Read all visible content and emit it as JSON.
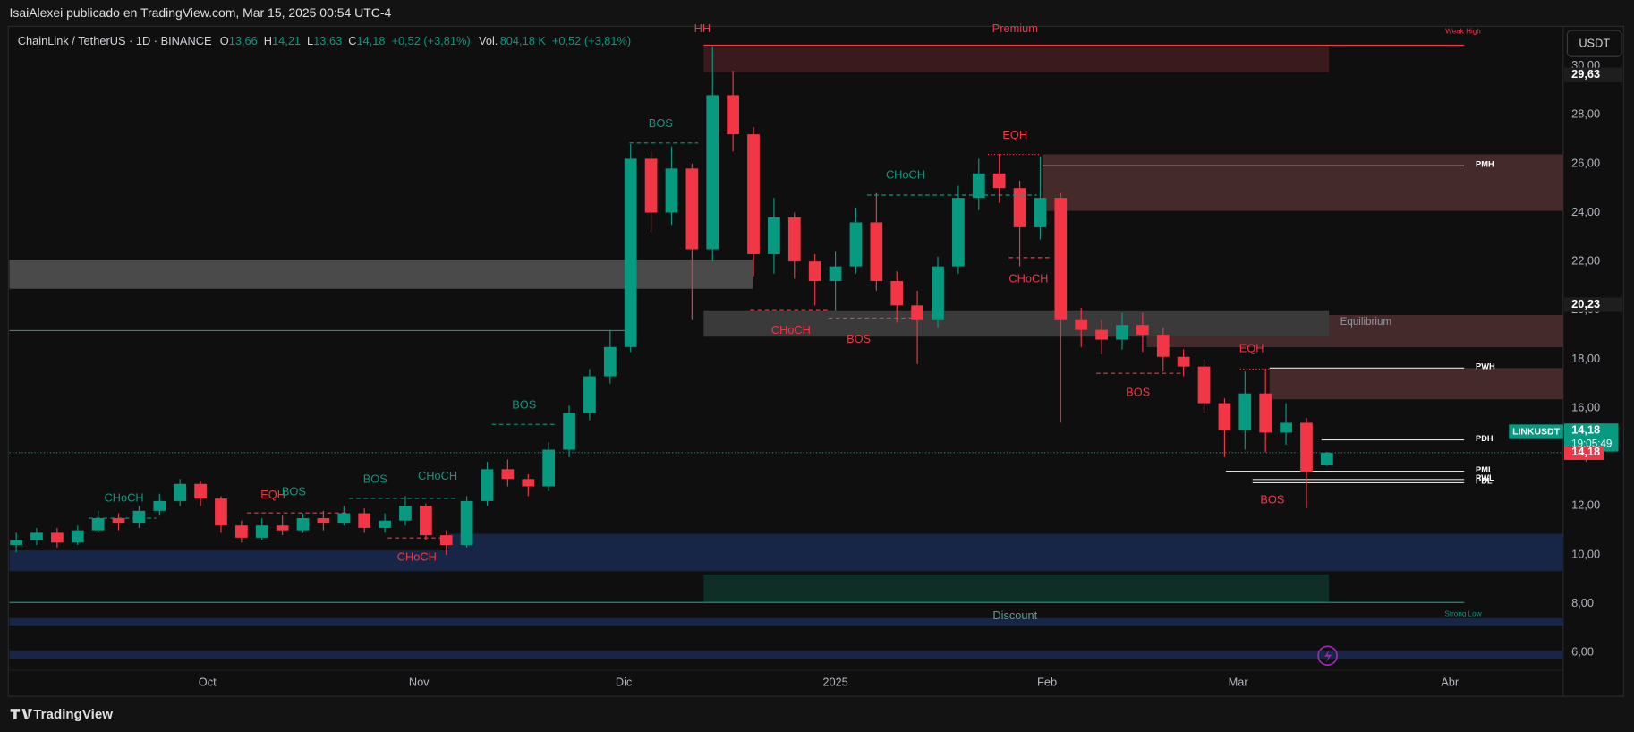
{
  "header": "IsaiAlexei publicado en TradingView.com, Mar 15, 2025 00:54 UTC-4",
  "brand": "TradingView",
  "currency": "USDT",
  "chart_data": {
    "type": "candlestick",
    "legend": {
      "symbol": "ChainLink / TetherUS · 1D · BINANCE",
      "fields": [
        {
          "key": "O",
          "value": "13,66"
        },
        {
          "key": "H",
          "value": "14,21"
        },
        {
          "key": "L",
          "value": "13,63"
        },
        {
          "key": "C",
          "value": "14,18"
        }
      ],
      "change": "+0,52 (+3,81%)",
      "vol_key": "Vol.",
      "volume": "804,18 K",
      "vol_change": "+0,52 (+3,81%)"
    },
    "up_color": "#089981",
    "down_color": "#f23645",
    "x": [
      1,
      4,
      7,
      10,
      13,
      16,
      19,
      22,
      25,
      28,
      31,
      34,
      37,
      40,
      43,
      46,
      49,
      52,
      55,
      58,
      61,
      64,
      67,
      70,
      73,
      76,
      79,
      82,
      85,
      88,
      91,
      94,
      97,
      100,
      103,
      106,
      109,
      112,
      115,
      118,
      121,
      124,
      127,
      130,
      133,
      136,
      139,
      142,
      145,
      148,
      151,
      154,
      157,
      160,
      163,
      166,
      169,
      172,
      175,
      178,
      181,
      184,
      187,
      190,
      193
    ],
    "open": [
      10.4,
      10.6,
      10.9,
      10.5,
      11.0,
      11.5,
      11.3,
      11.8,
      12.2,
      12.9,
      12.3,
      11.2,
      10.7,
      11.2,
      11.0,
      11.5,
      11.3,
      11.7,
      11.1,
      11.4,
      12.0,
      10.8,
      10.4,
      12.2,
      13.5,
      13.1,
      12.8,
      14.3,
      15.8,
      17.3,
      18.5,
      26.2,
      24.0,
      25.8,
      22.5,
      28.8,
      27.2,
      22.3,
      23.8,
      22.0,
      21.2,
      21.8,
      23.6,
      21.2,
      20.2,
      19.6,
      21.8,
      24.6,
      25.6,
      25.0,
      23.4,
      24.6,
      19.6,
      19.2,
      18.8,
      19.4,
      19.0,
      18.1,
      17.7,
      16.2,
      15.1,
      16.6,
      15.0,
      15.4,
      13.66
    ],
    "high": [
      10.9,
      11.1,
      11.1,
      11.2,
      11.8,
      11.7,
      12.0,
      12.5,
      13.1,
      13.0,
      12.4,
      11.4,
      11.5,
      11.6,
      11.7,
      11.8,
      12.0,
      11.9,
      11.7,
      12.4,
      12.1,
      11.0,
      12.4,
      13.8,
      13.9,
      13.3,
      14.6,
      16.1,
      17.6,
      19.2,
      26.8,
      26.5,
      26.7,
      26.0,
      30.8,
      29.8,
      27.5,
      24.6,
      24.0,
      22.3,
      22.4,
      24.2,
      24.8,
      21.6,
      20.8,
      22.2,
      25.1,
      26.2,
      26.4,
      25.3,
      26.3,
      24.8,
      20.1,
      19.6,
      19.9,
      19.9,
      19.3,
      18.4,
      18.0,
      16.4,
      17.5,
      17.6,
      16.2,
      15.6,
      14.21
    ],
    "low": [
      10.1,
      10.4,
      10.3,
      10.4,
      10.9,
      11.0,
      11.1,
      11.6,
      12.0,
      12.0,
      10.9,
      10.5,
      10.6,
      10.8,
      10.9,
      11.0,
      11.2,
      10.9,
      10.9,
      11.2,
      10.6,
      10.0,
      10.3,
      12.0,
      12.8,
      12.4,
      12.6,
      14.0,
      15.5,
      17.0,
      18.3,
      23.2,
      23.5,
      19.6,
      22.0,
      26.5,
      21.4,
      21.5,
      21.3,
      20.2,
      20.0,
      21.5,
      20.8,
      19.5,
      17.8,
      19.3,
      21.5,
      24.1,
      24.4,
      21.8,
      22.9,
      15.4,
      18.5,
      18.2,
      18.4,
      18.3,
      17.5,
      17.3,
      15.8,
      14.0,
      14.3,
      14.2,
      14.5,
      11.9,
      13.63
    ],
    "close": [
      10.6,
      10.9,
      10.5,
      11.0,
      11.5,
      11.3,
      11.8,
      12.2,
      12.9,
      12.3,
      11.2,
      10.7,
      11.2,
      11.0,
      11.5,
      11.3,
      11.7,
      11.1,
      11.4,
      12.0,
      10.8,
      10.4,
      12.2,
      13.5,
      13.1,
      12.8,
      14.3,
      15.8,
      17.3,
      18.5,
      26.2,
      24.0,
      25.8,
      22.5,
      28.8,
      27.2,
      22.3,
      23.8,
      22.0,
      21.2,
      21.8,
      23.6,
      21.2,
      20.2,
      19.6,
      21.8,
      24.6,
      25.6,
      25.0,
      23.4,
      24.6,
      19.6,
      19.2,
      18.8,
      19.4,
      19.0,
      18.1,
      17.7,
      16.2,
      15.1,
      16.6,
      15.0,
      15.4,
      13.4,
      14.18
    ],
    "xlim": [
      0,
      227.6
    ],
    "xticks": [
      {
        "value": 29,
        "label": "Oct"
      },
      {
        "value": 60,
        "label": "Nov"
      },
      {
        "value": 90,
        "label": "Dic"
      },
      {
        "value": 121,
        "label": "2025"
      },
      {
        "value": 152,
        "label": "Feb"
      },
      {
        "value": 180,
        "label": "Mar"
      },
      {
        "value": 211,
        "label": "Abr"
      }
    ],
    "ylim": [
      4.21,
      31.62
    ],
    "yticks": [
      {
        "value": 6,
        "label": "6,00"
      },
      {
        "value": 8,
        "label": "8,00"
      },
      {
        "value": 10,
        "label": "10,00"
      },
      {
        "value": 12,
        "label": "12,00"
      },
      {
        "value": 14,
        "label": "14,00"
      },
      {
        "value": 16,
        "label": "16,00"
      },
      {
        "value": 18,
        "label": "18,00"
      },
      {
        "value": 20,
        "label": "20,00"
      },
      {
        "value": 22,
        "label": "22,00"
      },
      {
        "value": 24,
        "label": "24,00"
      },
      {
        "value": 26,
        "label": "26,00"
      },
      {
        "value": 28,
        "label": "28,00"
      },
      {
        "value": 30,
        "label": "30,00"
      }
    ],
    "grid": false,
    "zones": [
      {
        "x": [
          101.7,
          193.3
        ],
        "y": [
          29.74,
          30.85
        ],
        "color": "#3b1a1e"
      },
      {
        "x": [
          151.3,
          227.6
        ],
        "y": [
          24.07,
          26.38
        ],
        "color": "#452a2b"
      },
      {
        "x": [
          0,
          108.9
        ],
        "y": [
          20.88,
          22.07
        ],
        "color": "#4a4a4a"
      },
      {
        "x": [
          166.6,
          227.6
        ],
        "y": [
          18.49,
          19.81
        ],
        "color": "#452a2b"
      },
      {
        "x": [
          101.7,
          193.3
        ],
        "y": [
          18.92,
          20.0
        ],
        "color": "#3a3a3a"
      },
      {
        "x": [
          184.6,
          227.6
        ],
        "y": [
          16.36,
          17.64
        ],
        "color": "#452a2b"
      },
      {
        "x": [
          64.3,
          227.6
        ],
        "y": [
          10.09,
          10.86
        ],
        "color": "#172646"
      },
      {
        "x": [
          0,
          227.6
        ],
        "y": [
          9.33,
          10.18
        ],
        "color": "#172646"
      },
      {
        "x": [
          101.7,
          193.3
        ],
        "y": [
          8.05,
          9.2
        ],
        "color": "#0e2e26"
      },
      {
        "x": [
          0,
          227.6
        ],
        "y": [
          7.11,
          7.41
        ],
        "color": "#172646"
      },
      {
        "x": [
          0,
          227.6
        ],
        "y": [
          5.75,
          6.09
        ],
        "color": "#172646"
      }
    ],
    "lines": [
      {
        "value": 30.85,
        "x": [
          101.7,
          213.1
        ],
        "color": "#f23645"
      },
      {
        "value": 19.17,
        "x": [
          0,
          90.2
        ],
        "color": "#089981"
      },
      {
        "value": 8.05,
        "x": [
          0,
          213.1
        ],
        "color": "#089981"
      }
    ],
    "levels": [
      {
        "label": "PMH",
        "value": 25.91,
        "x": [
          151.3,
          213.1
        ]
      },
      {
        "label": "PWH",
        "value": 17.64,
        "x": [
          184.6,
          213.1
        ]
      },
      {
        "label": "PDH",
        "value": 14.7,
        "x": [
          192.2,
          213.1
        ]
      },
      {
        "label": "PML",
        "value": 13.42,
        "x": [
          178.2,
          213.1
        ]
      },
      {
        "label": "PWL",
        "value": 13.08,
        "x": [
          182.1,
          213.1
        ]
      },
      {
        "label": "PDL",
        "value": 12.95,
        "x": [
          182.1,
          213.1
        ]
      }
    ],
    "annotations": [
      {
        "text": "HH",
        "color": "#f23645"
      },
      {
        "text": "Premium",
        "color": "#f23645"
      },
      {
        "text": "Weak High",
        "color": "#f23645"
      },
      {
        "text": "BOS",
        "color": "#089981"
      },
      {
        "text": "EQH",
        "color": "#f23645"
      },
      {
        "text": "CHoCH",
        "color": "#089981"
      },
      {
        "text": "CHoCH",
        "color": "#f23645"
      },
      {
        "text": "CHoCH",
        "color": "#f23645"
      },
      {
        "text": "BOS",
        "color": "#f23645"
      },
      {
        "text": "Equilibrium",
        "color": "#9598a1"
      },
      {
        "text": "EQH",
        "color": "#f23645"
      },
      {
        "text": "BOS",
        "color": "#f23645"
      },
      {
        "text": "BOS",
        "color": "#089981"
      },
      {
        "text": "CHoCH",
        "color": "#089981"
      },
      {
        "text": "EQH",
        "color": "#f23645"
      },
      {
        "text": "BOS",
        "color": "#089981"
      },
      {
        "text": "BOS",
        "color": "#089981"
      },
      {
        "text": "CHoCH",
        "color": "#089981"
      },
      {
        "text": "CHoCH",
        "color": "#f23645"
      },
      {
        "text": "BOS",
        "color": "#f23645"
      },
      {
        "text": "Discount",
        "color": "#5d9c8f"
      },
      {
        "text": "Strong Low",
        "color": "#089981"
      }
    ],
    "price_tags": [
      {
        "value": 29.63,
        "label": "29,63"
      },
      {
        "value": 20.23,
        "label": "20,23"
      }
    ],
    "last_price": {
      "value": 14.18,
      "label": "14,18"
    },
    "countdown": "19:05:49",
    "symbol_tag": "LINKUSDT",
    "close_tag": {
      "value": 14.18,
      "label": "14,18"
    }
  }
}
